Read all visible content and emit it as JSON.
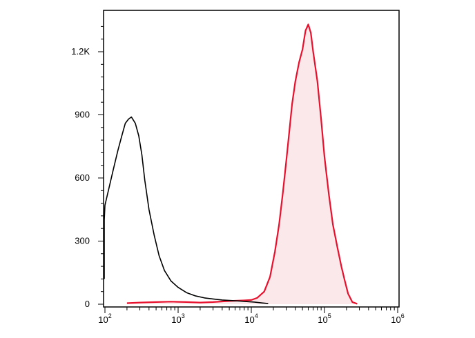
{
  "chart_data": {
    "type": "area",
    "title": "",
    "xlabel": "",
    "ylabel": "",
    "x_scale": "log",
    "xlim": [
      60,
      1000000
    ],
    "ylim": [
      0,
      1400
    ],
    "grid": false,
    "legend": "none",
    "x_ticks": [
      {
        "base": "10",
        "exp": "2",
        "value": 100
      },
      {
        "base": "10",
        "exp": "3",
        "value": 1000
      },
      {
        "base": "10",
        "exp": "4",
        "value": 10000
      },
      {
        "base": "10",
        "exp": "5",
        "value": 100000
      },
      {
        "base": "10",
        "exp": "6",
        "value": 1000000
      }
    ],
    "y_ticks": [
      {
        "label": "0",
        "value": 0
      },
      {
        "label": "300",
        "value": 300
      },
      {
        "label": "600",
        "value": 600
      },
      {
        "label": "900",
        "value": 900
      },
      {
        "label": "1.2K",
        "value": 1200
      }
    ],
    "series": [
      {
        "color": "#000000",
        "fill": "none",
        "points": [
          [
            60,
            120
          ],
          [
            70,
            200
          ],
          [
            80,
            300
          ],
          [
            90,
            400
          ],
          [
            100,
            470
          ],
          [
            115,
            560
          ],
          [
            130,
            640
          ],
          [
            150,
            730
          ],
          [
            170,
            800
          ],
          [
            190,
            860
          ],
          [
            210,
            880
          ],
          [
            230,
            890
          ],
          [
            260,
            860
          ],
          [
            290,
            800
          ],
          [
            320,
            710
          ],
          [
            350,
            590
          ],
          [
            400,
            450
          ],
          [
            470,
            330
          ],
          [
            550,
            230
          ],
          [
            650,
            160
          ],
          [
            800,
            110
          ],
          [
            1000,
            80
          ],
          [
            1300,
            55
          ],
          [
            1700,
            40
          ],
          [
            2300,
            30
          ],
          [
            3000,
            25
          ],
          [
            4000,
            20
          ],
          [
            5500,
            17
          ],
          [
            7000,
            15
          ],
          [
            9000,
            12
          ],
          [
            11000,
            10
          ],
          [
            14000,
            6
          ],
          [
            17000,
            3
          ]
        ]
      },
      {
        "color": "#e8112d",
        "fill": "#fbe8ea",
        "points": [
          [
            200,
            5
          ],
          [
            300,
            8
          ],
          [
            500,
            10
          ],
          [
            800,
            12
          ],
          [
            1300,
            10
          ],
          [
            2000,
            8
          ],
          [
            3000,
            10
          ],
          [
            5000,
            15
          ],
          [
            8000,
            18
          ],
          [
            10000,
            20
          ],
          [
            12000,
            30
          ],
          [
            15000,
            60
          ],
          [
            18000,
            130
          ],
          [
            21000,
            250
          ],
          [
            24000,
            380
          ],
          [
            27000,
            530
          ],
          [
            30000,
            680
          ],
          [
            33000,
            820
          ],
          [
            36000,
            950
          ],
          [
            40000,
            1060
          ],
          [
            45000,
            1150
          ],
          [
            50000,
            1210
          ],
          [
            55000,
            1300
          ],
          [
            60000,
            1330
          ],
          [
            65000,
            1290
          ],
          [
            70000,
            1200
          ],
          [
            80000,
            1060
          ],
          [
            90000,
            880
          ],
          [
            100000,
            700
          ],
          [
            115000,
            520
          ],
          [
            130000,
            380
          ],
          [
            150000,
            270
          ],
          [
            170000,
            180
          ],
          [
            190000,
            110
          ],
          [
            210000,
            50
          ],
          [
            240000,
            10
          ],
          [
            280000,
            2
          ]
        ]
      }
    ]
  }
}
